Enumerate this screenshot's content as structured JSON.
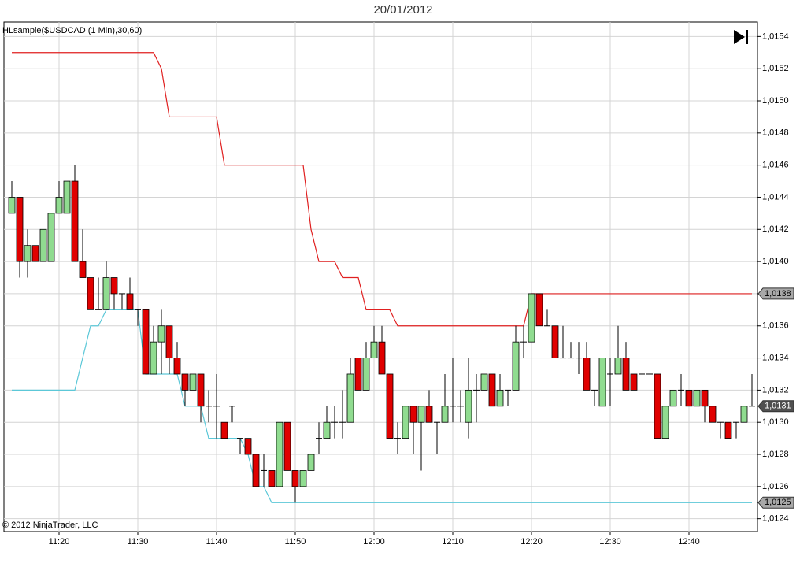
{
  "chart_data": {
    "type": "candlestick",
    "title": "20/01/2012",
    "indicator_label": "HLsample($USDCAD (1 Min),30,60)",
    "copyright": "© 2012 NinjaTrader, LLC",
    "up_color": "#90dc90",
    "down_color": "#e00000",
    "wick_color": "#000000",
    "grid": true,
    "categories": [
      null,
      null,
      null,
      null,
      null,
      null,
      "11:20",
      null,
      null,
      null,
      null,
      null,
      null,
      null,
      null,
      null,
      "11:30",
      null,
      null,
      null,
      null,
      null,
      null,
      null,
      null,
      null,
      "11:40",
      null,
      null,
      null,
      null,
      null,
      null,
      null,
      null,
      null,
      "11:50",
      null,
      null,
      null,
      null,
      null,
      null,
      null,
      null,
      null,
      "12:00",
      null,
      null,
      null,
      null,
      null,
      null,
      null,
      null,
      null,
      "12:10",
      null,
      null,
      null,
      null,
      null,
      null,
      null,
      null,
      null,
      "12:20",
      null,
      null,
      null,
      null,
      null,
      null,
      null,
      null,
      null,
      "12:30",
      null,
      null,
      null,
      null,
      null,
      null,
      null,
      null,
      null,
      "12:40",
      null,
      null,
      null,
      null,
      null,
      null,
      null,
      null
    ],
    "open": [
      1.0143,
      1.0144,
      1.014,
      1.0141,
      1.014,
      1.014,
      1.0143,
      1.0143,
      1.0145,
      1.014,
      1.0139,
      1.0137,
      1.0137,
      1.0139,
      1.0138,
      1.0138,
      1.0137,
      1.0137,
      1.0133,
      1.0135,
      1.0136,
      1.0134,
      1.0133,
      1.0132,
      1.0133,
      1.0131,
      1.0131,
      1.013,
      1.0131,
      1.0129,
      1.0129,
      1.0128,
      1.0127,
      1.0127,
      1.0126,
      1.013,
      1.0127,
      1.0126,
      1.0127,
      1.0129,
      1.0129,
      1.013,
      1.013,
      1.013,
      1.0134,
      1.0132,
      1.0134,
      1.0135,
      1.0133,
      1.0129,
      1.0129,
      1.0131,
      1.013,
      1.0131,
      1.013,
      1.013,
      1.0131,
      1.0131,
      1.013,
      1.0132,
      1.0132,
      1.0133,
      1.0131,
      1.0132,
      1.0132,
      1.0135,
      1.0135,
      1.0138,
      1.0136,
      1.0136,
      1.0134,
      1.0134,
      1.0134,
      1.0134,
      1.0132,
      1.0131,
      1.0133,
      1.0133,
      1.0134,
      1.0133,
      1.0133,
      1.0133,
      1.0133,
      1.0129,
      1.0131,
      1.0132,
      1.0132,
      1.0131,
      1.0132,
      1.0131,
      1.013,
      1.013,
      1.013,
      1.013,
      1.0131
    ],
    "high": [
      1.0145,
      1.0144,
      1.0142,
      1.0141,
      1.0142,
      1.0143,
      1.0145,
      1.0145,
      1.0146,
      1.0142,
      1.0139,
      1.0139,
      1.014,
      1.0139,
      1.0138,
      1.0139,
      1.0137,
      1.0137,
      1.0136,
      1.0137,
      1.0136,
      1.0135,
      1.0133,
      1.0133,
      1.0133,
      1.0132,
      1.0133,
      1.013,
      1.0131,
      1.0129,
      1.0129,
      1.0128,
      1.0128,
      1.0127,
      1.013,
      1.013,
      1.0127,
      1.0127,
      1.0128,
      1.013,
      1.0131,
      1.0131,
      1.0132,
      1.0134,
      1.0134,
      1.0135,
      1.0136,
      1.0136,
      1.0133,
      1.013,
      1.0131,
      1.0131,
      1.0131,
      1.0132,
      1.013,
      1.0133,
      1.0134,
      1.0132,
      1.0134,
      1.0133,
      1.0133,
      1.0133,
      1.0133,
      1.0132,
      1.0136,
      1.0136,
      1.0138,
      1.0138,
      1.0137,
      1.0136,
      1.0136,
      1.0135,
      1.0135,
      1.0135,
      1.0132,
      1.0134,
      1.0134,
      1.0136,
      1.0135,
      1.0133,
      1.0133,
      1.0133,
      1.0133,
      1.0131,
      1.0132,
      1.0133,
      1.0132,
      1.0132,
      1.0132,
      1.0131,
      1.013,
      1.013,
      1.013,
      1.0131,
      1.0133
    ],
    "low": [
      1.0143,
      1.0139,
      1.0139,
      1.014,
      1.014,
      1.014,
      1.0143,
      1.0143,
      1.014,
      1.0139,
      1.0137,
      1.0137,
      1.0137,
      1.0137,
      1.0137,
      1.0137,
      1.0136,
      1.0133,
      1.0133,
      1.0133,
      1.0133,
      1.0133,
      1.0131,
      1.0132,
      1.013,
      1.013,
      1.0129,
      1.0129,
      1.013,
      1.0128,
      1.0128,
      1.0126,
      1.0126,
      1.0126,
      1.0126,
      1.0127,
      1.0125,
      1.0126,
      1.0127,
      1.0128,
      1.0129,
      1.0129,
      1.0129,
      1.013,
      1.0132,
      1.0132,
      1.0134,
      1.0133,
      1.0129,
      1.0128,
      1.0129,
      1.0128,
      1.0127,
      1.013,
      1.0128,
      1.013,
      1.013,
      1.013,
      1.0129,
      1.013,
      1.0132,
      1.0131,
      1.0131,
      1.0131,
      1.0132,
      1.0134,
      1.0135,
      1.0136,
      1.0136,
      1.0134,
      1.0134,
      1.0134,
      1.0133,
      1.0132,
      1.0131,
      1.0131,
      1.0131,
      1.0133,
      1.0132,
      1.0132,
      1.0133,
      1.0133,
      1.0129,
      1.0129,
      1.0131,
      1.0131,
      1.0131,
      1.0131,
      1.013,
      1.013,
      1.0129,
      1.0129,
      1.0129,
      1.013,
      1.0131
    ],
    "close": [
      1.0144,
      1.014,
      1.0141,
      1.014,
      1.0142,
      1.0143,
      1.0144,
      1.0145,
      1.014,
      1.0139,
      1.0137,
      1.0137,
      1.0139,
      1.0138,
      1.0138,
      1.0137,
      1.0137,
      1.0133,
      1.0135,
      1.0136,
      1.0134,
      1.0133,
      1.0132,
      1.0133,
      1.0131,
      1.0131,
      1.0131,
      1.0129,
      1.0131,
      1.0129,
      1.0128,
      1.0126,
      1.0127,
      1.0126,
      1.013,
      1.0127,
      1.0126,
      1.0127,
      1.0128,
      1.0129,
      1.013,
      1.013,
      1.013,
      1.0133,
      1.0132,
      1.0134,
      1.0135,
      1.0133,
      1.0129,
      1.0129,
      1.0131,
      1.013,
      1.0131,
      1.013,
      1.013,
      1.0131,
      1.0131,
      1.0131,
      1.0132,
      1.0132,
      1.0133,
      1.0131,
      1.0132,
      1.0132,
      1.0135,
      1.0135,
      1.0138,
      1.0136,
      1.0136,
      1.0134,
      1.0134,
      1.0134,
      1.0134,
      1.0132,
      1.0132,
      1.0134,
      1.0133,
      1.0134,
      1.0132,
      1.0132,
      1.0133,
      1.0133,
      1.0129,
      1.0131,
      1.0132,
      1.0132,
      1.0131,
      1.0132,
      1.0131,
      1.013,
      1.013,
      1.0129,
      1.013,
      1.0131,
      1.0131
    ],
    "last_price_label": "1,0131",
    "lines": [
      {
        "color": "#e02020",
        "last_label": "1,0138",
        "values": [
          1.0153,
          1.0153,
          1.0153,
          1.0153,
          1.0153,
          1.0153,
          1.0153,
          1.0153,
          1.0153,
          1.0153,
          1.0153,
          1.0153,
          1.0153,
          1.0153,
          1.0153,
          1.0153,
          1.0153,
          1.0153,
          1.0153,
          1.0152,
          1.0149,
          1.0149,
          1.0149,
          1.0149,
          1.0149,
          1.0149,
          1.0149,
          1.0146,
          1.0146,
          1.0146,
          1.0146,
          1.0146,
          1.0146,
          1.0146,
          1.0146,
          1.0146,
          1.0146,
          1.0146,
          1.0142,
          1.014,
          1.014,
          1.014,
          1.0139,
          1.0139,
          1.0139,
          1.0137,
          1.0137,
          1.0137,
          1.0137,
          1.0136,
          1.0136,
          1.0136,
          1.0136,
          1.0136,
          1.0136,
          1.0136,
          1.0136,
          1.0136,
          1.0136,
          1.0136,
          1.0136,
          1.0136,
          1.0136,
          1.0136,
          1.0136,
          1.0136,
          1.0138,
          1.0138,
          1.0138,
          1.0138,
          1.0138,
          1.0138,
          1.0138,
          1.0138,
          1.0138,
          1.0138,
          1.0138,
          1.0138,
          1.0138,
          1.0138,
          1.0138,
          1.0138,
          1.0138,
          1.0138,
          1.0138,
          1.0138,
          1.0138,
          1.0138,
          1.0138,
          1.0138,
          1.0138,
          1.0138,
          1.0138,
          1.0138,
          1.0138
        ]
      },
      {
        "color": "#5cc8d8",
        "last_label": "1,0125",
        "values": [
          1.0132,
          1.0132,
          1.0132,
          1.0132,
          1.0132,
          1.0132,
          1.0132,
          1.0132,
          1.0132,
          1.0134,
          1.0136,
          1.0136,
          1.0137,
          1.0137,
          1.0137,
          1.0137,
          1.0137,
          1.0133,
          1.0133,
          1.0133,
          1.0133,
          1.0133,
          1.0131,
          1.0131,
          1.0131,
          1.0129,
          1.0129,
          1.0129,
          1.0129,
          1.0129,
          1.0128,
          1.0126,
          1.0126,
          1.0125,
          1.0125,
          1.0125,
          1.0125,
          1.0125,
          1.0125,
          1.0125,
          1.0125,
          1.0125,
          1.0125,
          1.0125,
          1.0125,
          1.0125,
          1.0125,
          1.0125,
          1.0125,
          1.0125,
          1.0125,
          1.0125,
          1.0125,
          1.0125,
          1.0125,
          1.0125,
          1.0125,
          1.0125,
          1.0125,
          1.0125,
          1.0125,
          1.0125,
          1.0125,
          1.0125,
          1.0125,
          1.0125,
          1.0125,
          1.0125,
          1.0125,
          1.0125,
          1.0125,
          1.0125,
          1.0125,
          1.0125,
          1.0125,
          1.0125,
          1.0125,
          1.0125,
          1.0125,
          1.0125,
          1.0125,
          1.0125,
          1.0125,
          1.0125,
          1.0125,
          1.0125,
          1.0125,
          1.0125,
          1.0125,
          1.0125,
          1.0125,
          1.0125,
          1.0125,
          1.0125,
          1.0125
        ]
      }
    ],
    "ylim": [
      1.01232,
      1.01549
    ],
    "yticks": [
      {
        "value": 1.0124,
        "label": "1,0124"
      },
      {
        "value": 1.0126,
        "label": "1,0126"
      },
      {
        "value": 1.0128,
        "label": "1,0128"
      },
      {
        "value": 1.013,
        "label": "1,0130"
      },
      {
        "value": 1.0132,
        "label": "1,0132"
      },
      {
        "value": 1.0134,
        "label": "1,0134"
      },
      {
        "value": 1.0136,
        "label": "1,0136"
      },
      {
        "value": 1.0138,
        "label": "1,0138"
      },
      {
        "value": 1.014,
        "label": "1,0140"
      },
      {
        "value": 1.0142,
        "label": "1,0142"
      },
      {
        "value": 1.0144,
        "label": "1,0144"
      },
      {
        "value": 1.0146,
        "label": "1,0146"
      },
      {
        "value": 1.0148,
        "label": "1,0148"
      },
      {
        "value": 1.015,
        "label": "1,0150"
      },
      {
        "value": 1.0152,
        "label": "1,0152"
      },
      {
        "value": 1.0154,
        "label": "1,0154"
      }
    ]
  }
}
